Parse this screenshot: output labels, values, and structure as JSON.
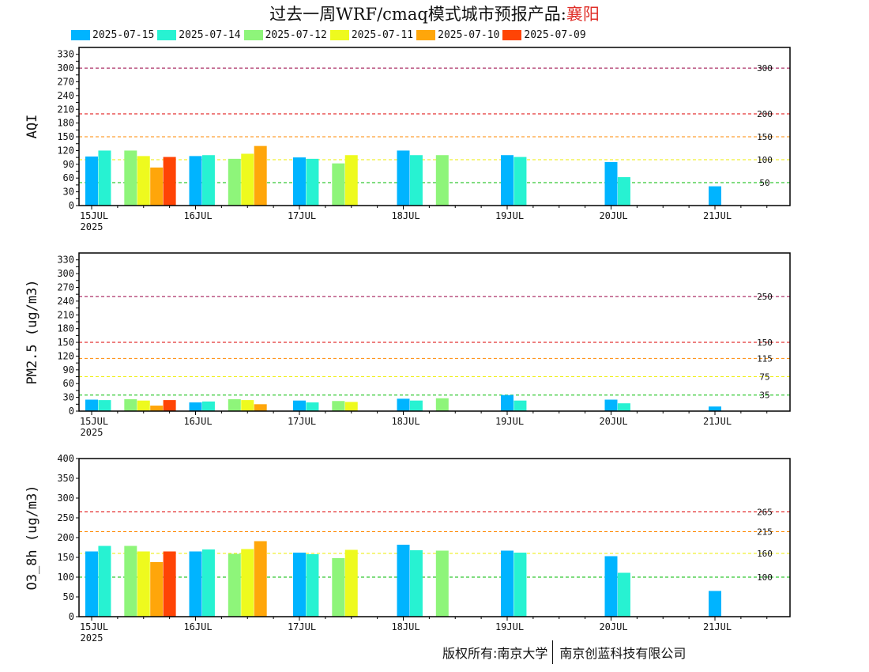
{
  "title": {
    "prefix": "过去一周WRF/cmaq模式城市预报产品:",
    "city": "襄阳"
  },
  "colors": {
    "2025-07-15": "#00b4ff",
    "2025-07-14": "#27f2d2",
    "2025-07-12": "#8ef57a",
    "2025-07-11": "#eefa1e",
    "2025-07-10": "#ffa60a",
    "2025-07-09": "#ff4405"
  },
  "legend": [
    "2025-07-15",
    "2025-07-14",
    "2025-07-12",
    "2025-07-11",
    "2025-07-10",
    "2025-07-09"
  ],
  "copyright": {
    "left": "版权所有:南京大学",
    "right": "南京创蓝科技有限公司"
  },
  "chart_data": [
    {
      "type": "bar",
      "ylabel": "AQI",
      "ylim": [
        0,
        345
      ],
      "yticks": [
        0,
        15,
        30,
        45,
        60,
        75,
        90,
        105,
        120,
        135,
        150,
        165,
        180,
        195,
        210,
        225,
        240,
        255,
        270,
        285,
        300,
        315,
        330
      ],
      "ytick_labels": [
        "0",
        "",
        "30",
        "",
        "60",
        "",
        "90",
        "",
        "120",
        "",
        "150",
        "",
        "180",
        "",
        "210",
        "",
        "240",
        "",
        "270",
        "",
        "300",
        "",
        "330"
      ],
      "xtick_labels": [
        "15JUL",
        "16JUL",
        "17JUL",
        "18JUL",
        "19JUL",
        "20JUL",
        "21JUL"
      ],
      "x_year": "2025",
      "thresholds": [
        {
          "value": 300,
          "label": "300",
          "color": "#990044"
        },
        {
          "value": 200,
          "label": "200",
          "color": "#dd0000"
        },
        {
          "value": 150,
          "label": "150",
          "color": "#ff8800"
        },
        {
          "value": 100,
          "label": "100",
          "color": "#eeee00"
        },
        {
          "value": 50,
          "label": "50",
          "color": "#00bb00"
        }
      ],
      "series": [
        {
          "name": "2025-07-15",
          "x": [
            0,
            1,
            2,
            3,
            4,
            5,
            6
          ],
          "values": [
            107,
            108,
            105,
            120,
            110,
            95,
            42
          ]
        },
        {
          "name": "2025-07-14",
          "x": [
            0.125,
            1.125,
            2.125,
            3.125,
            4.125,
            5.125
          ],
          "values": [
            120,
            110,
            102,
            110,
            106,
            62
          ]
        },
        {
          "name": "2025-07-12",
          "x": [
            0.375,
            1.375,
            2.375,
            3.375
          ],
          "values": [
            120,
            102,
            92,
            110
          ]
        },
        {
          "name": "2025-07-11",
          "x": [
            0.5,
            1.5,
            2.5
          ],
          "values": [
            108,
            113,
            110
          ]
        },
        {
          "name": "2025-07-10",
          "x": [
            0.625,
            1.625
          ],
          "values": [
            83,
            130
          ]
        },
        {
          "name": "2025-07-09",
          "x": [
            0.75
          ],
          "values": [
            106
          ]
        }
      ]
    },
    {
      "type": "bar",
      "ylabel": "PM2.5 (ug/m3)",
      "ylim": [
        0,
        345
      ],
      "yticks": [
        0,
        15,
        30,
        45,
        60,
        75,
        90,
        105,
        120,
        135,
        150,
        165,
        180,
        195,
        210,
        225,
        240,
        255,
        270,
        285,
        300,
        315,
        330
      ],
      "ytick_labels": [
        "0",
        "",
        "30",
        "",
        "60",
        "",
        "90",
        "",
        "120",
        "",
        "150",
        "",
        "180",
        "",
        "210",
        "",
        "240",
        "",
        "270",
        "",
        "300",
        "",
        "330"
      ],
      "xtick_labels": [
        "15JUL",
        "16JUL",
        "17JUL",
        "18JUL",
        "19JUL",
        "20JUL",
        "21JUL"
      ],
      "x_year": "2025",
      "thresholds": [
        {
          "value": 250,
          "label": "250",
          "color": "#990044"
        },
        {
          "value": 150,
          "label": "150",
          "color": "#dd0000"
        },
        {
          "value": 115,
          "label": "115",
          "color": "#ff8800"
        },
        {
          "value": 75,
          "label": "75",
          "color": "#eeee00"
        },
        {
          "value": 35,
          "label": "35",
          "color": "#00bb00"
        }
      ],
      "series": [
        {
          "name": "2025-07-15",
          "x": [
            0,
            1,
            2,
            3,
            4,
            5,
            6
          ],
          "values": [
            25,
            19,
            23,
            27,
            35,
            25,
            10
          ]
        },
        {
          "name": "2025-07-14",
          "x": [
            0.125,
            1.125,
            2.125,
            3.125,
            4.125,
            5.125
          ],
          "values": [
            24,
            21,
            19,
            23,
            23,
            17
          ]
        },
        {
          "name": "2025-07-12",
          "x": [
            0.375,
            1.375,
            2.375,
            3.375
          ],
          "values": [
            26,
            26,
            22,
            28
          ]
        },
        {
          "name": "2025-07-11",
          "x": [
            0.5,
            1.5,
            2.5
          ],
          "values": [
            23,
            24,
            20
          ]
        },
        {
          "name": "2025-07-10",
          "x": [
            0.625,
            1.625
          ],
          "values": [
            12,
            15
          ]
        },
        {
          "name": "2025-07-09",
          "x": [
            0.75
          ],
          "values": [
            24
          ]
        }
      ]
    },
    {
      "type": "bar",
      "ylabel": "O3_8h (ug/m3)",
      "ylim": [
        0,
        400
      ],
      "yticks": [
        0,
        50,
        100,
        150,
        200,
        250,
        300,
        350,
        400
      ],
      "ytick_labels": [
        "0",
        "50",
        "100",
        "150",
        "200",
        "250",
        "300",
        "350",
        "400"
      ],
      "xtick_labels": [
        "15JUL",
        "16JUL",
        "17JUL",
        "18JUL",
        "19JUL",
        "20JUL",
        "21JUL"
      ],
      "x_year": "2025",
      "thresholds": [
        {
          "value": 265,
          "label": "265",
          "color": "#dd0000"
        },
        {
          "value": 215,
          "label": "215",
          "color": "#ff8800"
        },
        {
          "value": 160,
          "label": "160",
          "color": "#eeee00"
        },
        {
          "value": 100,
          "label": "100",
          "color": "#00bb00"
        }
      ],
      "series": [
        {
          "name": "2025-07-15",
          "x": [
            0,
            1,
            2,
            3,
            4,
            5,
            6
          ],
          "values": [
            165,
            165,
            162,
            182,
            167,
            153,
            65
          ]
        },
        {
          "name": "2025-07-14",
          "x": [
            0.125,
            1.125,
            2.125,
            3.125,
            4.125,
            5.125
          ],
          "values": [
            179,
            170,
            158,
            168,
            162,
            111
          ]
        },
        {
          "name": "2025-07-12",
          "x": [
            0.375,
            1.375,
            2.375,
            3.375
          ],
          "values": [
            179,
            159,
            148,
            167
          ]
        },
        {
          "name": "2025-07-11",
          "x": [
            0.5,
            1.5,
            2.5
          ],
          "values": [
            165,
            171,
            169
          ]
        },
        {
          "name": "2025-07-10",
          "x": [
            0.625,
            1.625
          ],
          "values": [
            138,
            191
          ]
        },
        {
          "name": "2025-07-09",
          "x": [
            0.75
          ],
          "values": [
            165
          ]
        }
      ]
    }
  ]
}
